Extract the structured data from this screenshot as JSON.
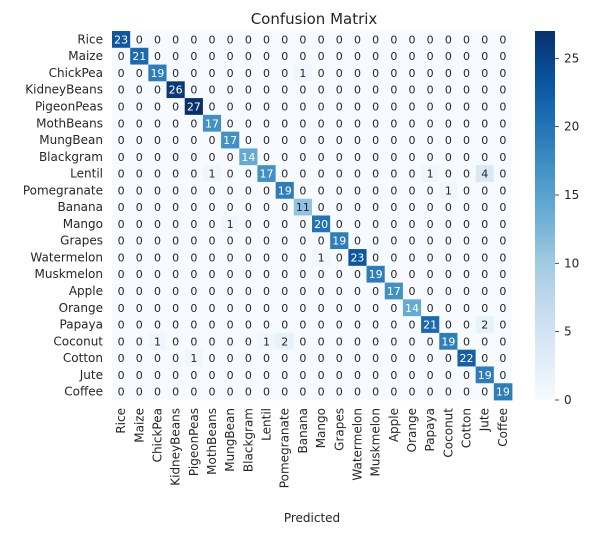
{
  "chart_data": {
    "type": "heatmap",
    "title": "Confusion Matrix",
    "xlabel": "Predicted",
    "ylabel": "",
    "labels": [
      "Rice",
      "Maize",
      "ChickPea",
      "KidneyBeans",
      "PigeonPeas",
      "MothBeans",
      "MungBean",
      "Blackgram",
      "Lentil",
      "Pomegranate",
      "Banana",
      "Mango",
      "Grapes",
      "Watermelon",
      "Muskmelon",
      "Apple",
      "Orange",
      "Papaya",
      "Coconut",
      "Cotton",
      "Jute",
      "Coffee"
    ],
    "matrix": [
      [
        23,
        0,
        0,
        0,
        0,
        0,
        0,
        0,
        0,
        0,
        0,
        0,
        0,
        0,
        0,
        0,
        0,
        0,
        0,
        0,
        0,
        0
      ],
      [
        0,
        21,
        0,
        0,
        0,
        0,
        0,
        0,
        0,
        0,
        0,
        0,
        0,
        0,
        0,
        0,
        0,
        0,
        0,
        0,
        0,
        0
      ],
      [
        0,
        0,
        19,
        0,
        0,
        0,
        0,
        0,
        0,
        0,
        1,
        0,
        0,
        0,
        0,
        0,
        0,
        0,
        0,
        0,
        0,
        0
      ],
      [
        0,
        0,
        0,
        26,
        0,
        0,
        0,
        0,
        0,
        0,
        0,
        0,
        0,
        0,
        0,
        0,
        0,
        0,
        0,
        0,
        0,
        0
      ],
      [
        0,
        0,
        0,
        0,
        27,
        0,
        0,
        0,
        0,
        0,
        0,
        0,
        0,
        0,
        0,
        0,
        0,
        0,
        0,
        0,
        0,
        0
      ],
      [
        0,
        0,
        0,
        0,
        0,
        17,
        0,
        0,
        0,
        0,
        0,
        0,
        0,
        0,
        0,
        0,
        0,
        0,
        0,
        0,
        0,
        0
      ],
      [
        0,
        0,
        0,
        0,
        0,
        0,
        17,
        0,
        0,
        0,
        0,
        0,
        0,
        0,
        0,
        0,
        0,
        0,
        0,
        0,
        0,
        0
      ],
      [
        0,
        0,
        0,
        0,
        0,
        0,
        0,
        14,
        0,
        0,
        0,
        0,
        0,
        0,
        0,
        0,
        0,
        0,
        0,
        0,
        0,
        0
      ],
      [
        0,
        0,
        0,
        0,
        0,
        1,
        0,
        0,
        17,
        0,
        0,
        0,
        0,
        0,
        0,
        0,
        0,
        1,
        0,
        0,
        4,
        0
      ],
      [
        0,
        0,
        0,
        0,
        0,
        0,
        0,
        0,
        0,
        19,
        0,
        0,
        0,
        0,
        0,
        0,
        0,
        0,
        1,
        0,
        0,
        0
      ],
      [
        0,
        0,
        0,
        0,
        0,
        0,
        0,
        0,
        0,
        0,
        11,
        0,
        0,
        0,
        0,
        0,
        0,
        0,
        0,
        0,
        0,
        0
      ],
      [
        0,
        0,
        0,
        0,
        0,
        0,
        1,
        0,
        0,
        0,
        0,
        20,
        0,
        0,
        0,
        0,
        0,
        0,
        0,
        0,
        0,
        0
      ],
      [
        0,
        0,
        0,
        0,
        0,
        0,
        0,
        0,
        0,
        0,
        0,
        0,
        19,
        0,
        0,
        0,
        0,
        0,
        0,
        0,
        0,
        0
      ],
      [
        0,
        0,
        0,
        0,
        0,
        0,
        0,
        0,
        0,
        0,
        0,
        1,
        0,
        23,
        0,
        0,
        0,
        0,
        0,
        0,
        0,
        0
      ],
      [
        0,
        0,
        0,
        0,
        0,
        0,
        0,
        0,
        0,
        0,
        0,
        0,
        0,
        0,
        19,
        0,
        0,
        0,
        0,
        0,
        0,
        0
      ],
      [
        0,
        0,
        0,
        0,
        0,
        0,
        0,
        0,
        0,
        0,
        0,
        0,
        0,
        0,
        0,
        17,
        0,
        0,
        0,
        0,
        0,
        0
      ],
      [
        0,
        0,
        0,
        0,
        0,
        0,
        0,
        0,
        0,
        0,
        0,
        0,
        0,
        0,
        0,
        0,
        14,
        0,
        0,
        0,
        0,
        0
      ],
      [
        0,
        0,
        0,
        0,
        0,
        0,
        0,
        0,
        0,
        0,
        0,
        0,
        0,
        0,
        0,
        0,
        0,
        21,
        0,
        0,
        2,
        0
      ],
      [
        0,
        0,
        1,
        0,
        0,
        0,
        0,
        0,
        1,
        2,
        0,
        0,
        0,
        0,
        0,
        0,
        0,
        0,
        19,
        0,
        0,
        0
      ],
      [
        0,
        0,
        0,
        0,
        1,
        0,
        0,
        0,
        0,
        0,
        0,
        0,
        0,
        0,
        0,
        0,
        0,
        0,
        0,
        22,
        0,
        0
      ],
      [
        0,
        0,
        0,
        0,
        0,
        0,
        0,
        0,
        0,
        0,
        0,
        0,
        0,
        0,
        0,
        0,
        0,
        0,
        0,
        0,
        19,
        0
      ],
      [
        0,
        0,
        0,
        0,
        0,
        0,
        0,
        0,
        0,
        0,
        0,
        0,
        0,
        0,
        0,
        0,
        0,
        0,
        0,
        0,
        0,
        19
      ]
    ],
    "vmin": 0,
    "vmax": 27,
    "colorbar_ticks": [
      0,
      5,
      10,
      15,
      20,
      25
    ],
    "colormap": "Blues",
    "colors": {
      "low": "#f7fbff",
      "high": "#08306b"
    }
  }
}
